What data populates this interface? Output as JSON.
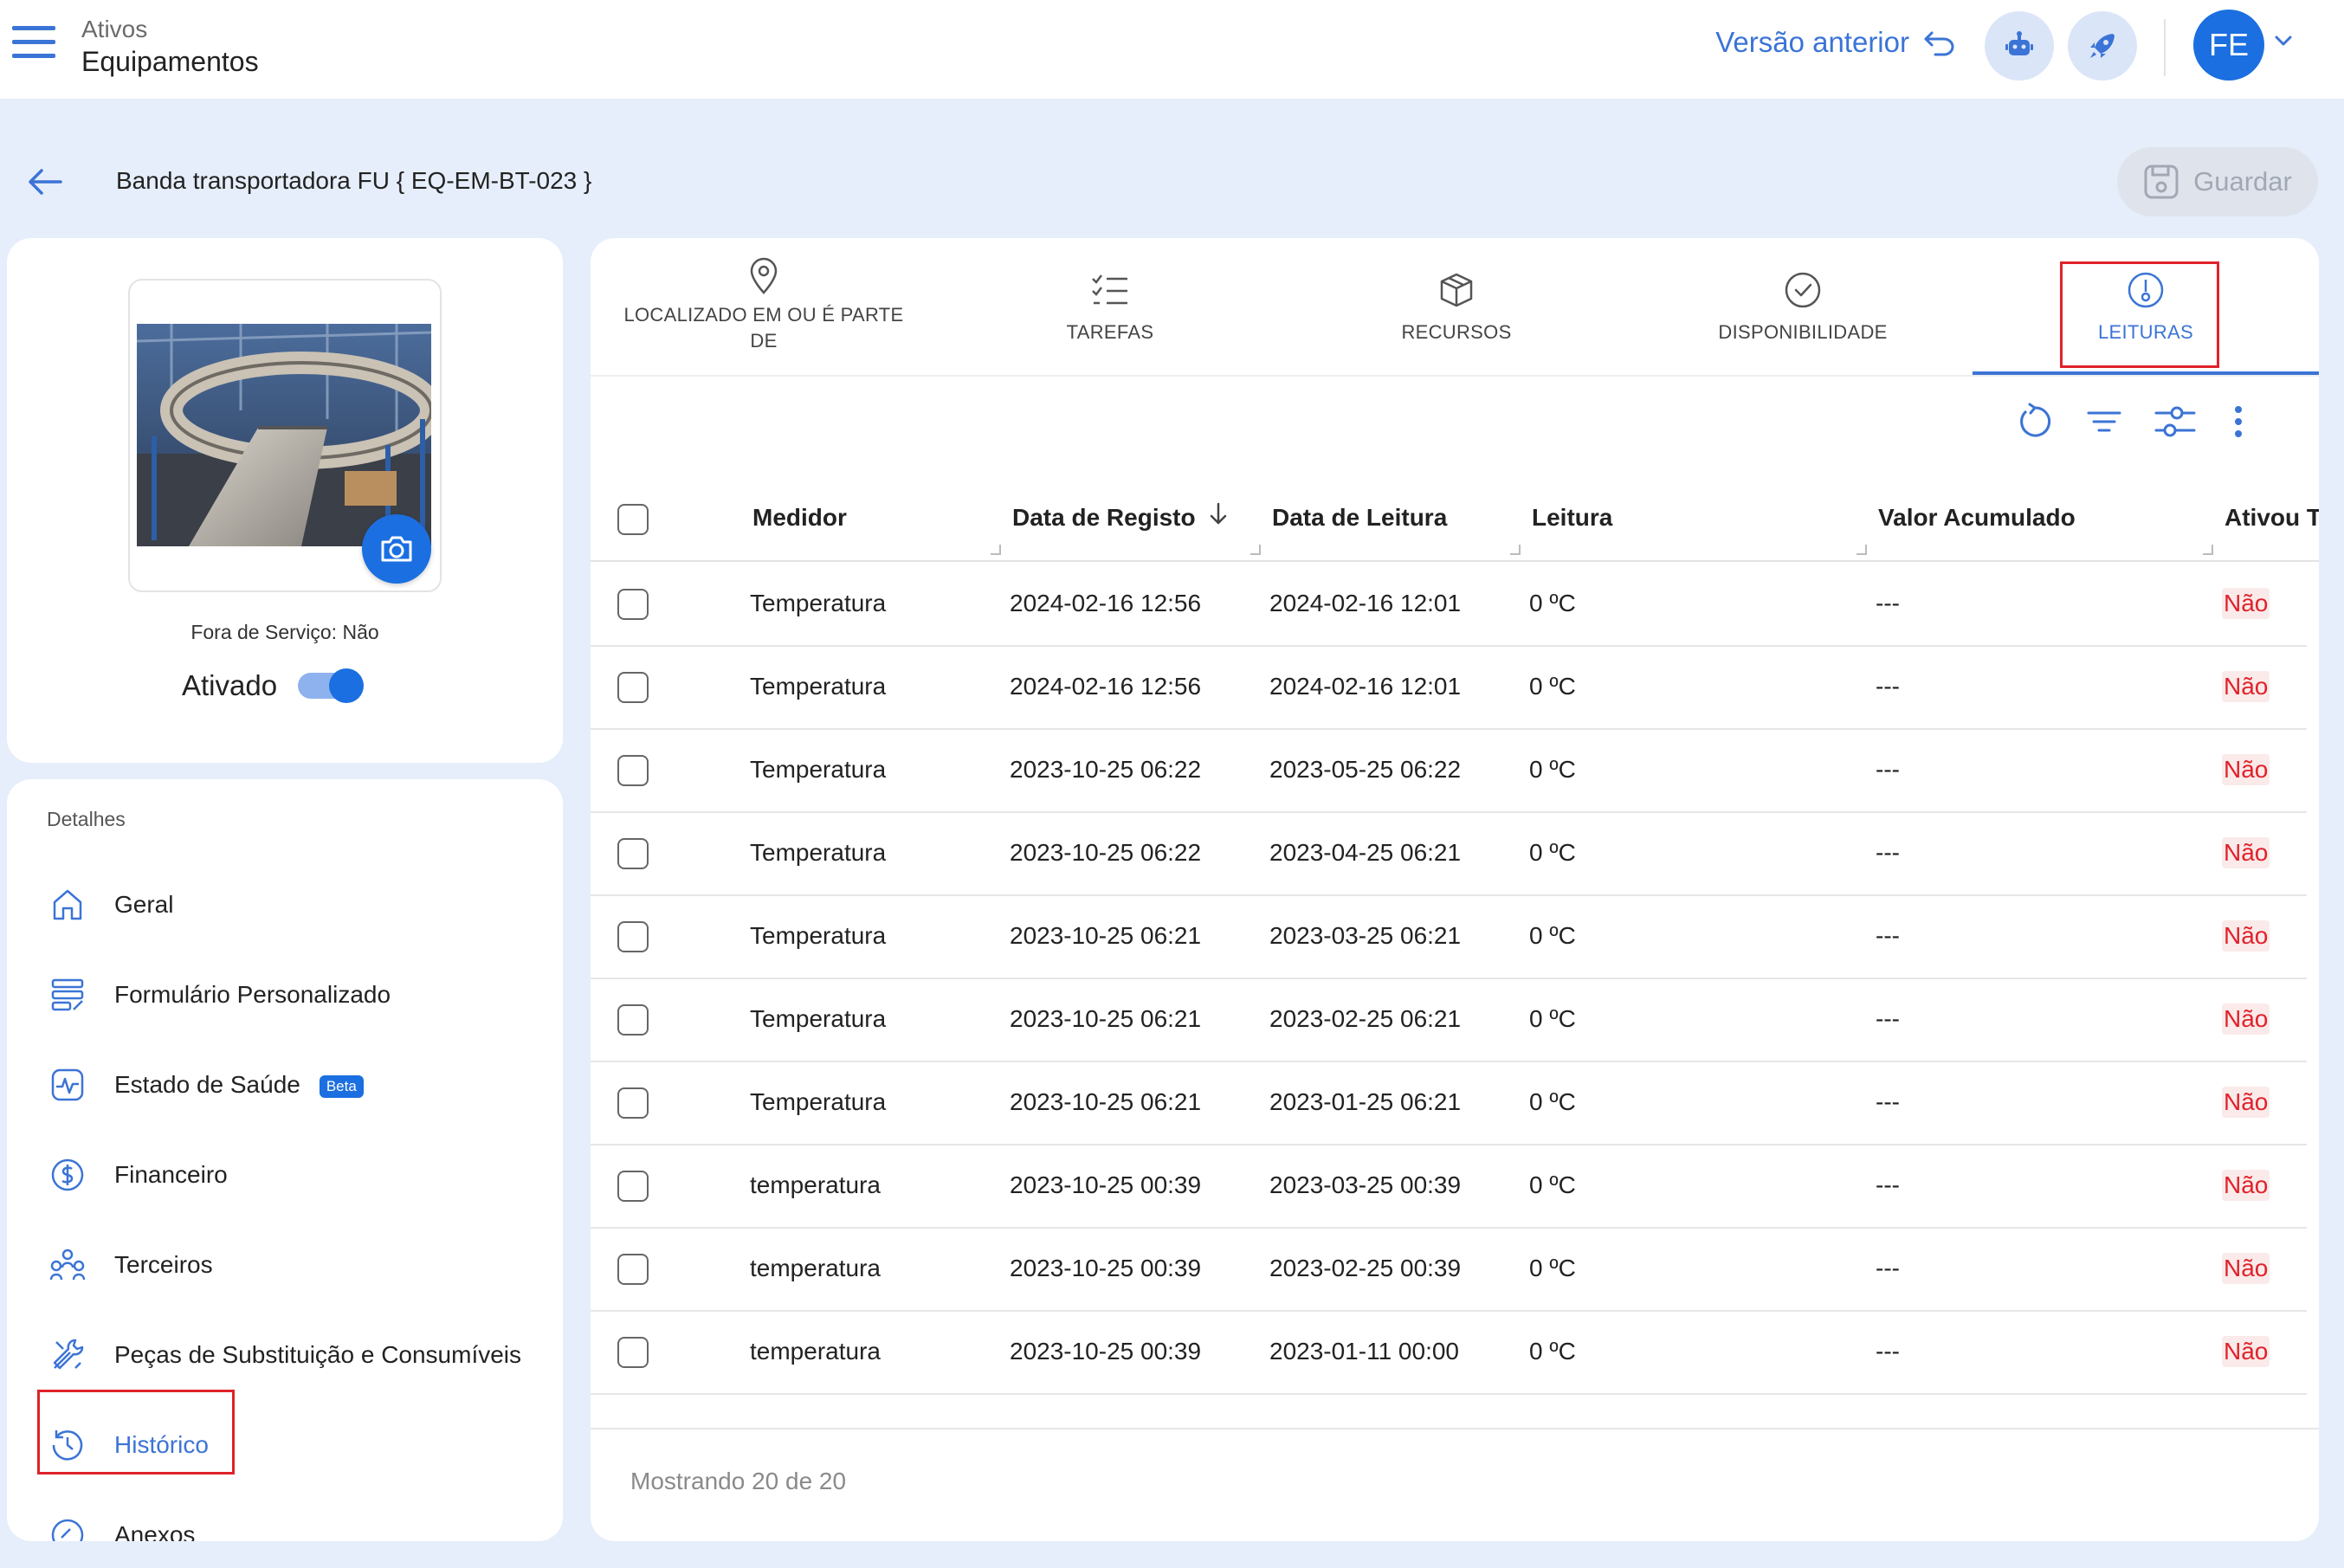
{
  "header": {
    "section": "Ativos",
    "title": "Equipamentos",
    "prev_version": "Versão anterior",
    "avatar_initials": "FE"
  },
  "page": {
    "title": "Banda transportadora FU { EQ-EM-BT-023 }",
    "save_label": "Guardar"
  },
  "asset_card": {
    "out_of_service": "Fora de Serviço: Não",
    "activated_label": "Ativado",
    "activated": true
  },
  "details": {
    "heading": "Detalhes",
    "items": [
      {
        "label": "Geral",
        "icon": "home-icon"
      },
      {
        "label": "Formulário Personalizado",
        "icon": "form-icon"
      },
      {
        "label": "Estado de Saúde",
        "icon": "health-icon",
        "badge": "Beta"
      },
      {
        "label": "Financeiro",
        "icon": "dollar-icon"
      },
      {
        "label": "Terceiros",
        "icon": "people-icon"
      },
      {
        "label": "Peças de Substituição e Consumíveis",
        "icon": "tools-icon"
      },
      {
        "label": "Histórico",
        "icon": "history-icon",
        "active": true
      },
      {
        "label": "Anexos",
        "icon": "attachment-icon"
      }
    ]
  },
  "tabs": [
    {
      "label": "LOCALIZADO EM OU É PARTE DE",
      "icon": "location-pin-icon"
    },
    {
      "label": "TAREFAS",
      "icon": "checklist-icon"
    },
    {
      "label": "RECURSOS",
      "icon": "box-icon"
    },
    {
      "label": "DISPONIBILIDADE",
      "icon": "check-circle-icon"
    },
    {
      "label": "LEITURAS",
      "icon": "gauge-icon",
      "active": true
    }
  ],
  "table": {
    "columns": [
      "Medidor",
      "Data de Registo",
      "Data de Leitura",
      "Leitura",
      "Valor Acumulado",
      "Ativou Ta"
    ],
    "sort_column": "Data de Registo",
    "sort_direction": "desc",
    "rows": [
      {
        "meter": "Temperatura",
        "reg": "2024-02-16 12:56",
        "read": "2024-02-16 12:01",
        "value": "0 ºC",
        "acc": "---",
        "triggered": "Não"
      },
      {
        "meter": "Temperatura",
        "reg": "2024-02-16 12:56",
        "read": "2024-02-16 12:01",
        "value": "0 ºC",
        "acc": "---",
        "triggered": "Não"
      },
      {
        "meter": "Temperatura",
        "reg": "2023-10-25 06:22",
        "read": "2023-05-25 06:22",
        "value": "0 ºC",
        "acc": "---",
        "triggered": "Não"
      },
      {
        "meter": "Temperatura",
        "reg": "2023-10-25 06:22",
        "read": "2023-04-25 06:21",
        "value": "0 ºC",
        "acc": "---",
        "triggered": "Não"
      },
      {
        "meter": "Temperatura",
        "reg": "2023-10-25 06:21",
        "read": "2023-03-25 06:21",
        "value": "0 ºC",
        "acc": "---",
        "triggered": "Não"
      },
      {
        "meter": "Temperatura",
        "reg": "2023-10-25 06:21",
        "read": "2023-02-25 06:21",
        "value": "0 ºC",
        "acc": "---",
        "triggered": "Não"
      },
      {
        "meter": "Temperatura",
        "reg": "2023-10-25 06:21",
        "read": "2023-01-25 06:21",
        "value": "0 ºC",
        "acc": "---",
        "triggered": "Não"
      },
      {
        "meter": "temperatura",
        "reg": "2023-10-25 00:39",
        "read": "2023-03-25 00:39",
        "value": "0 ºC",
        "acc": "---",
        "triggered": "Não"
      },
      {
        "meter": "temperatura",
        "reg": "2023-10-25 00:39",
        "read": "2023-02-25 00:39",
        "value": "0 ºC",
        "acc": "---",
        "triggered": "Não"
      },
      {
        "meter": "temperatura",
        "reg": "2023-10-25 00:39",
        "read": "2023-01-11 00:00",
        "value": "0 ºC",
        "acc": "---",
        "triggered": "Não"
      }
    ]
  },
  "footer": {
    "showing": "Mostrando 20 de 20"
  },
  "colors": {
    "accent": "#1b6fe0",
    "link": "#3b74d6",
    "negative": "#e0222a",
    "background": "#e6eefb"
  }
}
